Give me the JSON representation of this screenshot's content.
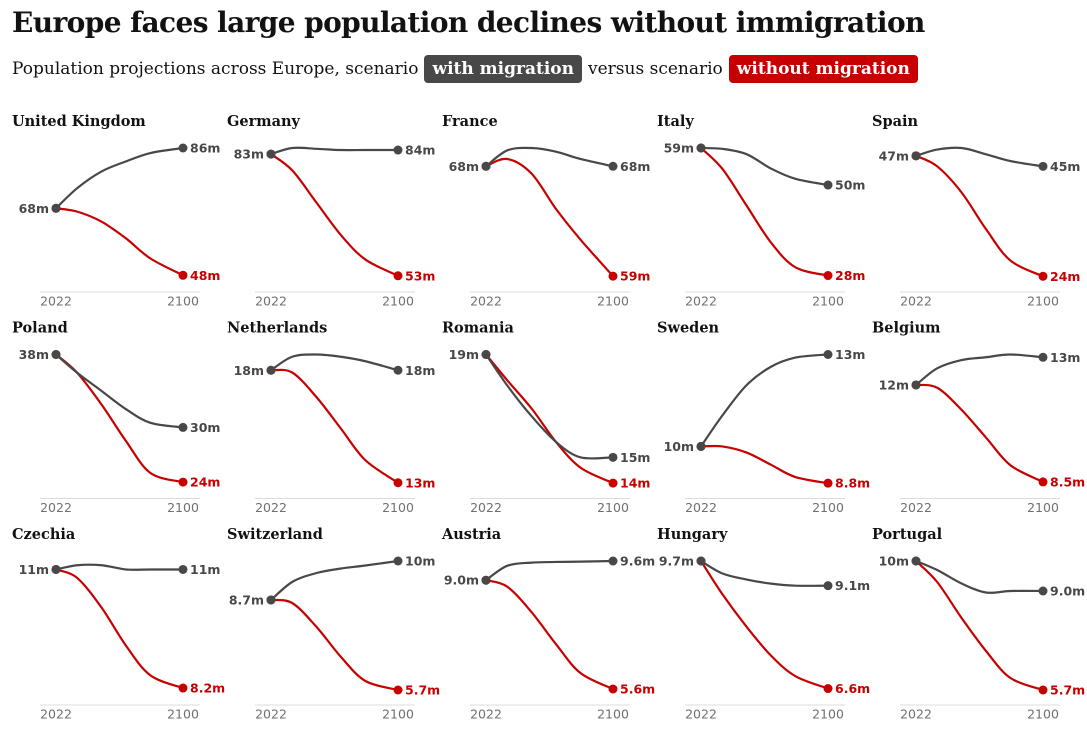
{
  "header": {
    "title": "Europe faces large population declines without immigration",
    "subtitle": "Population projections across Europe, scenario",
    "subtitle_join": "versus scenario"
  },
  "chart_data": [
    {
      "type": "line",
      "title": "United Kingdom",
      "x": [
        2022,
        2035,
        2050,
        2065,
        2080,
        2100
      ],
      "xlim": [
        2022,
        2100
      ],
      "xticks": [
        2022,
        2100
      ],
      "ylim": [
        43,
        86
      ],
      "series": [
        {
          "name": "with migration",
          "color": "#484848",
          "values": [
            68,
            74,
            79,
            82,
            84.5,
            86
          ],
          "value_labels": [
            "68m",
            null,
            null,
            null,
            null,
            "86m"
          ]
        },
        {
          "name": "without migration",
          "color": "#c70000",
          "values": [
            68,
            67,
            64,
            59,
            53,
            48
          ],
          "value_labels": [
            null,
            null,
            null,
            null,
            null,
            "48m"
          ]
        }
      ]
    },
    {
      "type": "line",
      "title": "Germany",
      "x": [
        2022,
        2035,
        2050,
        2065,
        2080,
        2100
      ],
      "xlim": [
        2022,
        2100
      ],
      "xticks": [
        2022,
        2100
      ],
      "ylim": [
        49,
        84.5
      ],
      "series": [
        {
          "name": "with migration",
          "color": "#484848",
          "values": [
            83,
            84.5,
            84.3,
            84,
            84,
            84
          ],
          "value_labels": [
            "83m",
            null,
            null,
            null,
            null,
            "84m"
          ]
        },
        {
          "name": "without migration",
          "color": "#c70000",
          "values": [
            83,
            79,
            71,
            63,
            57,
            53
          ],
          "value_labels": [
            null,
            null,
            null,
            null,
            null,
            "53m"
          ]
        }
      ]
    },
    {
      "type": "line",
      "title": "France",
      "x": [
        2022,
        2035,
        2050,
        2065,
        2080,
        2100
      ],
      "xlim": [
        2022,
        2100
      ],
      "xticks": [
        2022,
        2100
      ],
      "ylim": [
        57.7,
        69.5
      ],
      "series": [
        {
          "name": "with migration",
          "color": "#484848",
          "values": [
            68,
            69.3,
            69.5,
            69.2,
            68.6,
            68
          ],
          "value_labels": [
            "68m",
            null,
            null,
            null,
            null,
            "68m"
          ]
        },
        {
          "name": "without migration",
          "color": "#c70000",
          "values": [
            68,
            68.6,
            67.4,
            64.5,
            62,
            59
          ],
          "value_labels": [
            null,
            null,
            null,
            null,
            null,
            "59m"
          ]
        }
      ]
    },
    {
      "type": "line",
      "title": "Italy",
      "x": [
        2022,
        2035,
        2050,
        2065,
        2080,
        2100
      ],
      "xlim": [
        2022,
        2100
      ],
      "xticks": [
        2022,
        2100
      ],
      "ylim": [
        24,
        59
      ],
      "series": [
        {
          "name": "with migration",
          "color": "#484848",
          "values": [
            59,
            58.8,
            57.5,
            54,
            51.5,
            50
          ],
          "value_labels": [
            "59m",
            null,
            null,
            null,
            null,
            "50m"
          ]
        },
        {
          "name": "without migration",
          "color": "#c70000",
          "values": [
            59,
            54,
            45,
            36,
            30,
            28
          ],
          "value_labels": [
            null,
            null,
            null,
            null,
            null,
            "28m"
          ]
        }
      ]
    },
    {
      "type": "line",
      "title": "Spain",
      "x": [
        2022,
        2035,
        2050,
        2065,
        2080,
        2100
      ],
      "xlim": [
        2022,
        2100
      ],
      "xticks": [
        2022,
        2100
      ],
      "ylim": [
        21,
        48.5
      ],
      "series": [
        {
          "name": "with migration",
          "color": "#484848",
          "values": [
            47,
            48.2,
            48.5,
            47.3,
            46,
            45
          ],
          "value_labels": [
            "47m",
            null,
            null,
            null,
            null,
            "45m"
          ]
        },
        {
          "name": "without migration",
          "color": "#c70000",
          "values": [
            47,
            45,
            40,
            33,
            27,
            24
          ],
          "value_labels": [
            null,
            null,
            null,
            null,
            null,
            "24m"
          ]
        }
      ]
    },
    {
      "type": "line",
      "title": "Poland",
      "x": [
        2022,
        2035,
        2050,
        2065,
        2080,
        2100
      ],
      "xlim": [
        2022,
        2100
      ],
      "xticks": [
        2022,
        2100
      ],
      "ylim": [
        22.2,
        38
      ],
      "series": [
        {
          "name": "with migration",
          "color": "#484848",
          "values": [
            38,
            36,
            34,
            32,
            30.5,
            30
          ],
          "value_labels": [
            "38m",
            null,
            null,
            null,
            null,
            "30m"
          ]
        },
        {
          "name": "without migration",
          "color": "#c70000",
          "values": [
            38,
            36,
            32.5,
            28.5,
            25,
            24
          ],
          "value_labels": [
            null,
            null,
            null,
            null,
            null,
            "24m"
          ]
        }
      ]
    },
    {
      "type": "line",
      "title": "Netherlands",
      "x": [
        2022,
        2035,
        2050,
        2065,
        2080,
        2100
      ],
      "xlim": [
        2022,
        2100
      ],
      "xticks": [
        2022,
        2100
      ],
      "ylim": [
        12.3,
        18.7
      ],
      "series": [
        {
          "name": "with migration",
          "color": "#484848",
          "values": [
            18,
            18.6,
            18.7,
            18.6,
            18.4,
            18
          ],
          "value_labels": [
            "18m",
            null,
            null,
            null,
            null,
            "18m"
          ]
        },
        {
          "name": "without migration",
          "color": "#c70000",
          "values": [
            18,
            17.9,
            16.8,
            15.4,
            14,
            13
          ],
          "value_labels": [
            null,
            null,
            null,
            null,
            null,
            "13m"
          ]
        }
      ]
    },
    {
      "type": "line",
      "title": "Romania",
      "x": [
        2022,
        2035,
        2050,
        2065,
        2080,
        2100
      ],
      "xlim": [
        2022,
        2100
      ],
      "xticks": [
        2022,
        2100
      ],
      "ylim": [
        13.4,
        19
      ],
      "series": [
        {
          "name": "with migration",
          "color": "#484848",
          "values": [
            19,
            17.8,
            16.6,
            15.6,
            15,
            15
          ],
          "value_labels": [
            "19m",
            null,
            null,
            null,
            null,
            "15m"
          ]
        },
        {
          "name": "without migration",
          "color": "#c70000",
          "values": [
            19,
            18,
            16.9,
            15.6,
            14.6,
            14
          ],
          "value_labels": [
            null,
            null,
            null,
            null,
            null,
            "14m"
          ]
        }
      ]
    },
    {
      "type": "line",
      "title": "Sweden",
      "x": [
        2022,
        2035,
        2050,
        2065,
        2080,
        2100
      ],
      "xlim": [
        2022,
        2100
      ],
      "xticks": [
        2022,
        2100
      ],
      "ylim": [
        8.3,
        13
      ],
      "series": [
        {
          "name": "with migration",
          "color": "#484848",
          "values": [
            10,
            11,
            12,
            12.6,
            12.9,
            13
          ],
          "value_labels": [
            "10m",
            null,
            null,
            null,
            null,
            "13m"
          ]
        },
        {
          "name": "without migration",
          "color": "#c70000",
          "values": [
            10,
            10,
            9.8,
            9.4,
            9,
            8.8
          ],
          "value_labels": [
            null,
            null,
            null,
            null,
            null,
            "8.8m"
          ]
        }
      ]
    },
    {
      "type": "line",
      "title": "Belgium",
      "x": [
        2022,
        2035,
        2050,
        2065,
        2080,
        2100
      ],
      "xlim": [
        2022,
        2100
      ],
      "xticks": [
        2022,
        2100
      ],
      "ylim": [
        7.9,
        13.1
      ],
      "series": [
        {
          "name": "with migration",
          "color": "#484848",
          "values": [
            12,
            12.6,
            12.9,
            13,
            13.1,
            13
          ],
          "value_labels": [
            "12m",
            null,
            null,
            null,
            null,
            "13m"
          ]
        },
        {
          "name": "without migration",
          "color": "#c70000",
          "values": [
            12,
            11.9,
            11.1,
            10.1,
            9.1,
            8.5
          ],
          "value_labels": [
            null,
            null,
            null,
            null,
            null,
            "8.5m"
          ]
        }
      ]
    },
    {
      "type": "line",
      "title": "Czechia",
      "x": [
        2022,
        2035,
        2050,
        2065,
        2080,
        2100
      ],
      "xlim": [
        2022,
        2100
      ],
      "xticks": [
        2022,
        2100
      ],
      "ylim": [
        7.8,
        11.2
      ],
      "series": [
        {
          "name": "with migration",
          "color": "#484848",
          "values": [
            11,
            11.1,
            11.1,
            11,
            11,
            11
          ],
          "value_labels": [
            "11m",
            null,
            null,
            null,
            null,
            "11m"
          ]
        },
        {
          "name": "without migration",
          "color": "#c70000",
          "values": [
            11,
            10.8,
            10.1,
            9.2,
            8.5,
            8.2
          ],
          "value_labels": [
            null,
            null,
            null,
            null,
            null,
            "8.2m"
          ]
        }
      ]
    },
    {
      "type": "line",
      "title": "Switzerland",
      "x": [
        2022,
        2035,
        2050,
        2065,
        2080,
        2100
      ],
      "xlim": [
        2022,
        2100
      ],
      "xticks": [
        2022,
        2100
      ],
      "ylim": [
        5.2,
        10
      ],
      "series": [
        {
          "name": "with migration",
          "color": "#484848",
          "values": [
            8.7,
            9.3,
            9.6,
            9.75,
            9.85,
            10
          ],
          "value_labels": [
            "8.7m",
            null,
            null,
            null,
            null,
            "10m"
          ]
        },
        {
          "name": "without migration",
          "color": "#c70000",
          "values": [
            8.7,
            8.6,
            7.8,
            6.8,
            6,
            5.7
          ],
          "value_labels": [
            null,
            null,
            null,
            null,
            null,
            "5.7m"
          ]
        }
      ]
    },
    {
      "type": "line",
      "title": "Austria",
      "x": [
        2022,
        2035,
        2050,
        2065,
        2080,
        2100
      ],
      "xlim": [
        2022,
        2100
      ],
      "xticks": [
        2022,
        2100
      ],
      "ylim": [
        5.1,
        9.6
      ],
      "series": [
        {
          "name": "with migration",
          "color": "#484848",
          "values": [
            9,
            9.45,
            9.55,
            9.57,
            9.58,
            9.6
          ],
          "value_labels": [
            "9.0m",
            null,
            null,
            null,
            null,
            "9.6m"
          ]
        },
        {
          "name": "without migration",
          "color": "#c70000",
          "values": [
            9,
            8.8,
            8,
            7,
            6.1,
            5.6
          ],
          "value_labels": [
            null,
            null,
            null,
            null,
            null,
            "5.6m"
          ]
        }
      ]
    },
    {
      "type": "line",
      "title": "Hungary",
      "x": [
        2022,
        2035,
        2050,
        2065,
        2080,
        2100
      ],
      "xlim": [
        2022,
        2100
      ],
      "xticks": [
        2022,
        2100
      ],
      "ylim": [
        6.2,
        9.7
      ],
      "series": [
        {
          "name": "with migration",
          "color": "#484848",
          "values": [
            9.7,
            9.4,
            9.25,
            9.15,
            9.1,
            9.1
          ],
          "value_labels": [
            "9.7m",
            null,
            null,
            null,
            null,
            "9.1m"
          ]
        },
        {
          "name": "without migration",
          "color": "#c70000",
          "values": [
            9.7,
            8.9,
            8.1,
            7.4,
            6.9,
            6.6
          ],
          "value_labels": [
            null,
            null,
            null,
            null,
            null,
            "6.6m"
          ]
        }
      ]
    },
    {
      "type": "line",
      "title": "Portugal",
      "x": [
        2022,
        2035,
        2050,
        2065,
        2080,
        2100
      ],
      "xlim": [
        2022,
        2100
      ],
      "xticks": [
        2022,
        2100
      ],
      "ylim": [
        5.2,
        10
      ],
      "series": [
        {
          "name": "with migration",
          "color": "#484848",
          "values": [
            10,
            9.7,
            9.25,
            8.95,
            9,
            9
          ],
          "value_labels": [
            "10m",
            null,
            null,
            null,
            null,
            "9.0m"
          ]
        },
        {
          "name": "without migration",
          "color": "#c70000",
          "values": [
            10,
            9.3,
            8.1,
            7,
            6.1,
            5.7
          ],
          "value_labels": [
            null,
            null,
            null,
            null,
            null,
            "5.7m"
          ]
        }
      ]
    }
  ]
}
